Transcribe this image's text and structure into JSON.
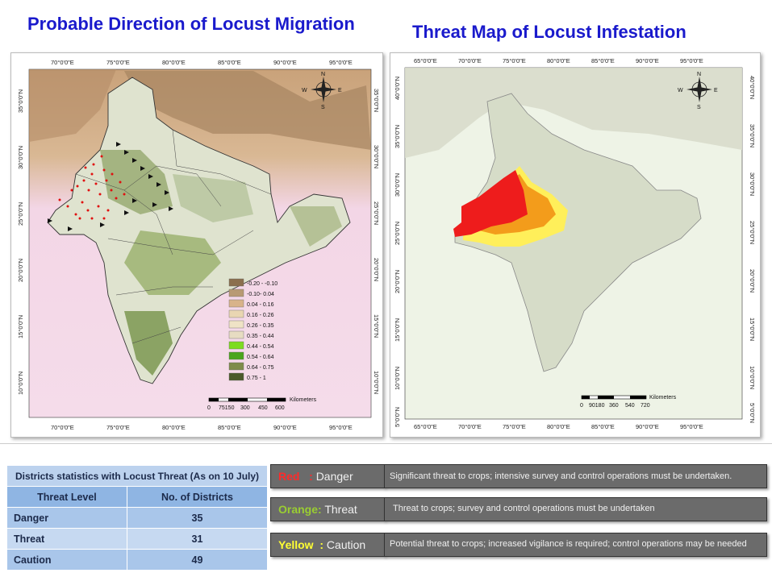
{
  "titles": {
    "left": "Probable Direction of Locust Migration",
    "right": "Threat Map of Locust Infestation"
  },
  "map_left": {
    "lon_ticks": [
      "70°0'0\"E",
      "75°0'0\"E",
      "80°0'0\"E",
      "85°0'0\"E",
      "90°0'0\"E",
      "95°0'0\"E"
    ],
    "lat_ticks": [
      "35°0'0\"N",
      "30°0'0\"N",
      "25°0'0\"N",
      "20°0'0\"N",
      "15°0'0\"N",
      "10°0'0\"N"
    ],
    "legend": [
      "-0.20 - -0.10",
      "-0.10- 0.04",
      "0.04 - 0.16",
      "0.16 - 0.26",
      "0.26 - 0.35",
      "0.35 - 0.44",
      "0.44 - 0.54",
      "0.54 - 0.64",
      "0.64 - 0.75",
      "0.75 - 1"
    ],
    "legend_colors": [
      "#8b6f4e",
      "#b89a73",
      "#d8b38a",
      "#e9d6b2",
      "#efe3c6",
      "#e7dcc2",
      "#7ddc1f",
      "#4aa51c",
      "#7e8c4a",
      "#4a5a2a"
    ],
    "scale_unit": "Kilometers",
    "scale_labels": [
      "0",
      "75150",
      "300",
      "450",
      "600"
    ],
    "compass": {
      "n": "N",
      "s": "S",
      "e": "E",
      "w": "W"
    }
  },
  "map_right": {
    "lon_ticks": [
      "65°0'0\"E",
      "70°0'0\"E",
      "75°0'0\"E",
      "80°0'0\"E",
      "85°0'0\"E",
      "90°0'0\"E",
      "95°0'0\"E"
    ],
    "lat_ticks": [
      "40°0'0\"N",
      "35°0'0\"N",
      "30°0'0\"N",
      "25°0'0\"N",
      "20°0'0\"N",
      "15°0'0\"N",
      "10°0'0\"N",
      "5°0'0\"N"
    ],
    "scale_unit": "Kilometers",
    "scale_labels": [
      "0",
      "90180",
      "360",
      "540",
      "720"
    ],
    "compass": {
      "n": "N",
      "s": "S",
      "e": "E",
      "w": "W"
    }
  },
  "stats_table": {
    "caption": "Districts statistics with Locust Threat (As on 10 July)",
    "headers": [
      "Threat Level",
      "No. of Districts"
    ],
    "rows": [
      {
        "level": "Danger",
        "count": "35"
      },
      {
        "level": "Threat",
        "count": "31"
      },
      {
        "level": "Caution",
        "count": "49"
      }
    ]
  },
  "threat_legend": [
    {
      "color_word": "Red",
      "sep": "   : ",
      "label": "Danger",
      "description": "Significant threat to crops; intensive survey and control operations must be undertaken."
    },
    {
      "color_word": "Orange:",
      "sep": " ",
      "label": "Threat",
      "description": "Threat to crops; survey and control operations must be undertaken"
    },
    {
      "color_word": "Yellow",
      "sep": "  : ",
      "label": "Caution",
      "description": "Potential threat to crops; increased vigilance is required; control operations may be needed"
    }
  ]
}
